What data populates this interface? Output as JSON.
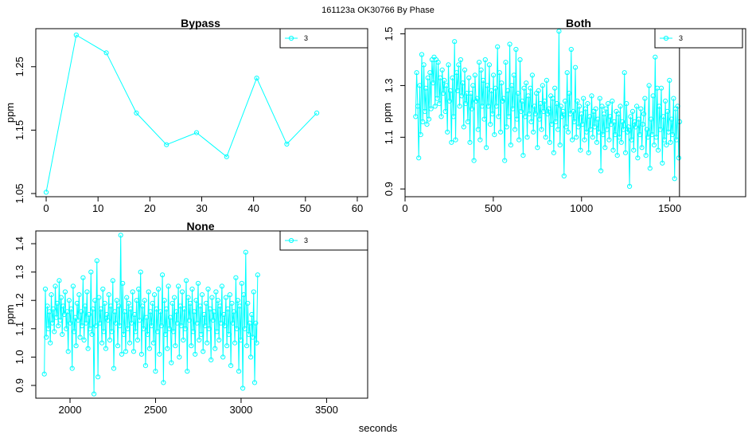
{
  "figure": {
    "title": "161123a    OK30766   By Phase",
    "xlabel": "seconds",
    "series_color": "#00FFFF"
  },
  "chart_data": [
    {
      "type": "line",
      "title": "Bypass",
      "ylabel": "ppm",
      "xlim": [
        -2,
        62
      ],
      "ylim": [
        1.045,
        1.31
      ],
      "xticks": [
        0,
        10,
        20,
        30,
        40,
        50,
        60
      ],
      "xtick_labels": [
        "0",
        "10",
        "20",
        "30",
        "40",
        "50",
        "60"
      ],
      "yticks": [
        1.05,
        1.15,
        1.25
      ],
      "ytick_labels": [
        "1.05",
        "1.15",
        "1.25"
      ],
      "legend": {
        "placement": "top-right",
        "labels": [
          "3"
        ]
      },
      "series": [
        {
          "name": "3",
          "x": [
            0,
            5.8,
            11.6,
            17.4,
            23.2,
            29.0,
            34.8,
            40.6,
            46.4,
            52.2
          ],
          "y": [
            1.052,
            1.3,
            1.272,
            1.177,
            1.127,
            1.146,
            1.108,
            1.232,
            1.128,
            1.177
          ]
        }
      ]
    },
    {
      "type": "line",
      "title": "Both",
      "ylabel": "ppm",
      "xlim": [
        0,
        1930
      ],
      "ylim": [
        0.87,
        1.52
      ],
      "xticks": [
        0,
        500,
        1000,
        1500
      ],
      "xtick_labels": [
        "0",
        "500",
        "1000",
        "1500"
      ],
      "yticks": [
        0.9,
        1.1,
        1.3,
        1.5
      ],
      "ytick_labels": [
        "0.9",
        "1.1",
        "1.3",
        "1.5"
      ],
      "legend": {
        "placement": "top-right",
        "labels": [
          "3"
        ]
      },
      "vline": 1555,
      "series": [
        {
          "name": "3",
          "x_start": 60,
          "x_step": 5.8,
          "y": [
            1.18,
            1.35,
            1.22,
            1.02,
            1.3,
            1.11,
            1.42,
            1.16,
            1.38,
            1.2,
            1.29,
            1.15,
            1.33,
            1.17,
            1.35,
            1.21,
            1.4,
            1.31,
            1.41,
            1.22,
            1.4,
            1.25,
            1.39,
            1.23,
            1.33,
            1.18,
            1.36,
            1.27,
            1.32,
            1.2,
            1.3,
            1.12,
            1.38,
            1.24,
            1.28,
            1.08,
            1.33,
            1.18,
            1.47,
            1.09,
            1.35,
            1.28,
            1.38,
            1.22,
            1.4,
            1.26,
            1.31,
            1.14,
            1.36,
            1.23,
            1.27,
            1.16,
            1.33,
            1.08,
            1.27,
            1.21,
            1.3,
            1.01,
            1.34,
            1.24,
            1.25,
            1.13,
            1.39,
            1.09,
            1.36,
            1.22,
            1.32,
            1.17,
            1.4,
            1.06,
            1.3,
            1.22,
            1.38,
            1.15,
            1.28,
            1.19,
            1.34,
            1.11,
            1.29,
            1.22,
            1.45,
            1.18,
            1.35,
            1.12,
            1.31,
            1.24,
            1.25,
            1.01,
            1.39,
            1.14,
            1.28,
            1.18,
            1.46,
            1.07,
            1.3,
            1.21,
            1.34,
            1.13,
            1.44,
            1.17,
            1.27,
            1.09,
            1.4,
            1.2,
            1.24,
            1.03,
            1.29,
            1.18,
            1.31,
            1.1,
            1.26,
            1.19,
            1.29,
            1.16,
            1.34,
            1.12,
            1.22,
            1.19,
            1.27,
            1.06,
            1.28,
            1.17,
            1.23,
            1.13,
            1.3,
            1.2,
            1.24,
            1.1,
            1.32,
            1.19,
            1.21,
            1.08,
            1.26,
            1.15,
            1.25,
            1.04,
            1.29,
            1.16,
            1.23,
            1.13,
            1.51,
            1.07,
            1.22,
            1.18,
            1.2,
            0.95,
            1.24,
            1.14,
            1.35,
            1.12,
            1.27,
            1.19,
            1.44,
            1.09,
            1.2,
            1.16,
            1.37,
            1.1,
            1.24,
            1.14,
            1.22,
            1.05,
            1.19,
            1.15,
            1.25,
            1.09,
            1.21,
            1.12,
            1.23,
            1.04,
            1.18,
            1.13,
            1.26,
            1.1,
            1.2,
            1.14,
            1.21,
            1.08,
            1.17,
            1.12,
            1.25,
            0.97,
            1.22,
            1.11,
            1.19,
            1.06,
            1.21,
            1.13,
            1.23,
            1.09,
            1.18,
            1.15,
            1.24,
            1.05,
            1.16,
            1.11,
            1.2,
            1.03,
            1.19,
            1.1,
            1.22,
            1.08,
            1.16,
            1.13,
            1.35,
            1.04,
            1.23,
            1.12,
            1.14,
            0.91,
            1.18,
            1.09,
            1.2,
            1.05,
            1.16,
            1.14,
            1.22,
            1.02,
            1.17,
            1.11,
            1.21,
            1.06,
            1.15,
            1.19,
            1.25,
            1.03,
            1.13,
            1.1,
            1.3,
            0.98,
            1.17,
            1.11,
            1.26,
            1.07,
            1.41,
            1.1,
            1.29,
            1.05,
            1.22,
            1.13,
            1.29,
            1.0,
            1.18,
            1.09,
            1.24,
            1.07,
            1.2,
            1.12,
            1.32,
            1.08,
            1.17,
            1.11,
            1.25,
            0.94,
            1.21,
            1.09,
            1.22,
            1.02,
            1.16
          ]
        }
      ]
    },
    {
      "type": "line",
      "title": "None",
      "ylabel": "ppm",
      "xlim": [
        1800,
        3740
      ],
      "ylim": [
        0.855,
        1.445
      ],
      "xticks": [
        2000,
        2500,
        3000,
        3500
      ],
      "xtick_labels": [
        "2000",
        "2500",
        "3000",
        "3500"
      ],
      "yticks": [
        0.9,
        1.0,
        1.1,
        1.2,
        1.3,
        1.4
      ],
      "ytick_labels": [
        "0.9",
        "1.0",
        "1.1",
        "1.2",
        "1.3",
        "1.4"
      ],
      "legend": {
        "placement": "top-right",
        "labels": [
          "3"
        ]
      },
      "series": [
        {
          "name": "3",
          "x_start": 1850,
          "x_step": 5.8,
          "y": [
            0.94,
            1.24,
            1.07,
            1.18,
            1.1,
            1.16,
            1.05,
            1.22,
            1.12,
            1.17,
            1.09,
            1.25,
            1.14,
            1.19,
            1.11,
            1.27,
            1.13,
            1.21,
            1.08,
            1.18,
            1.15,
            1.23,
            1.1,
            1.16,
            1.02,
            1.2,
            1.12,
            1.17,
            0.96,
            1.25,
            1.09,
            1.14,
            1.04,
            1.19,
            1.13,
            1.22,
            1.07,
            1.16,
            1.11,
            1.28,
            1.06,
            1.18,
            1.12,
            1.23,
            1.03,
            1.15,
            1.1,
            1.3,
            1.08,
            1.17,
            0.87,
            1.2,
            1.11,
            1.34,
            0.93,
            1.21,
            1.12,
            1.17,
            1.05,
            1.24,
            1.09,
            1.19,
            1.03,
            1.15,
            1.13,
            1.22,
            1.06,
            1.18,
            1.09,
            1.27,
            0.96,
            1.16,
            1.12,
            1.2,
            1.04,
            1.18,
            1.11,
            1.43,
            1.01,
            1.26,
            1.08,
            1.16,
            1.02,
            1.21,
            1.1,
            1.19,
            1.05,
            1.17,
            1.12,
            1.23,
            1.02,
            1.15,
            1.09,
            1.2,
            1.06,
            1.24,
            1.13,
            1.3,
            1.01,
            1.18,
            1.1,
            1.2,
            0.97,
            1.14,
            1.08,
            1.23,
            1.03,
            1.16,
            1.11,
            1.19,
            1.05,
            1.22,
            0.95,
            1.17,
            1.09,
            1.24,
            1.01,
            1.16,
            1.11,
            1.29,
            0.91,
            1.2,
            1.08,
            1.17,
            1.03,
            1.25,
            1.1,
            1.14,
            0.98,
            1.19,
            1.09,
            1.21,
            1.04,
            1.16,
            1.12,
            1.25,
            1.0,
            1.18,
            1.11,
            1.23,
            1.06,
            1.17,
            1.1,
            1.27,
            0.95,
            1.21,
            1.13,
            1.19,
            1.04,
            1.24,
            1.09,
            1.16,
            1.01,
            1.2,
            1.12,
            1.26,
            1.06,
            1.18,
            1.08,
            1.22,
            1.02,
            1.15,
            1.11,
            1.19,
            1.05,
            1.24,
            1.1,
            1.17,
            0.99,
            1.21,
            1.13,
            1.16,
            1.03,
            1.23,
            1.09,
            1.2,
            1.06,
            1.18,
            1.12,
            1.25,
            1.0,
            1.15,
            1.11,
            1.21,
            1.04,
            1.17,
            1.08,
            1.22,
            0.97,
            1.19,
            1.12,
            1.16,
            1.05,
            1.28,
            1.1,
            1.2,
            0.95,
            1.18,
            1.06,
            1.26,
            0.89,
            1.22,
            1.1,
            1.37,
            1.04,
            1.19,
            1.08,
            1.12,
            1.0,
            1.15,
            1.07,
            1.23,
            0.91,
            1.12,
            1.05,
            1.29
          ]
        }
      ]
    }
  ]
}
